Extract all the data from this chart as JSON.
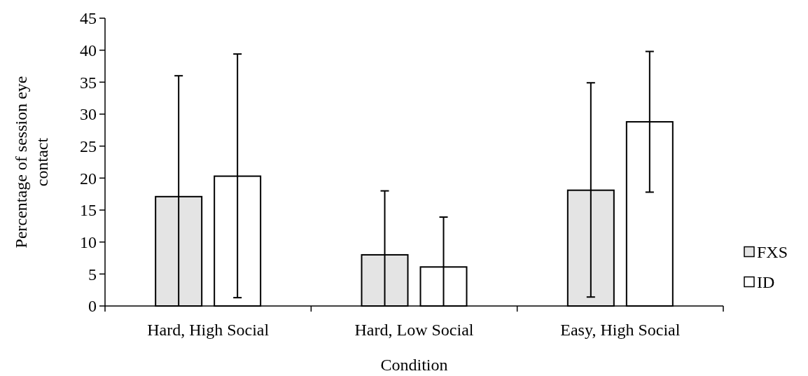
{
  "chart_data": {
    "type": "bar",
    "xlabel": "Condition",
    "ylabel": "Percentage of session eye contact",
    "categories": [
      "Hard, High Social",
      "Hard, Low Social",
      "Easy, High Social"
    ],
    "series": [
      {
        "name": "FXS",
        "color": "#e4e4e4",
        "values": [
          17.1,
          8.0,
          18.1
        ],
        "errors": [
          [
            0,
            36.0
          ],
          [
            0,
            18.0
          ],
          [
            1.4,
            34.9
          ]
        ]
      },
      {
        "name": "ID",
        "color": "#ffffff",
        "values": [
          20.3,
          6.1,
          28.8
        ],
        "errors": [
          [
            1.3,
            39.4
          ],
          [
            0,
            13.9
          ],
          [
            17.8,
            39.8
          ]
        ]
      }
    ],
    "ylim": [
      0,
      45
    ],
    "yticks": [
      0,
      5,
      10,
      15,
      20,
      25,
      30,
      35,
      40,
      45
    ],
    "legend": "right"
  }
}
